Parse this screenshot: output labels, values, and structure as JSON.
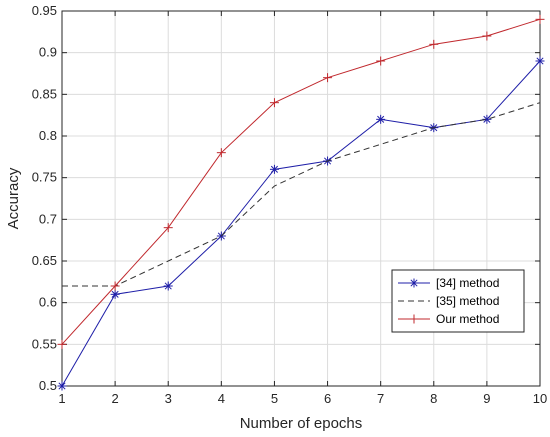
{
  "chart_data": {
    "type": "line",
    "x": [
      1,
      2,
      3,
      4,
      5,
      6,
      7,
      8,
      9,
      10
    ],
    "xlabel": "Number of epochs",
    "ylabel": "Accuracy",
    "xlim": [
      1,
      10
    ],
    "ylim": [
      0.5,
      0.95
    ],
    "xticks": [
      "1",
      "2",
      "3",
      "4",
      "5",
      "6",
      "7",
      "8",
      "9",
      "10"
    ],
    "yticks": [
      "0.5",
      "0.55",
      "0.6",
      "0.65",
      "0.7",
      "0.75",
      "0.8",
      "0.85",
      "0.9",
      "0.95"
    ],
    "grid": true,
    "legend_position": "bottom-right",
    "series": [
      {
        "name": "[34] method",
        "values": [
          0.5,
          0.61,
          0.62,
          0.68,
          0.76,
          0.77,
          0.82,
          0.81,
          0.82,
          0.89
        ],
        "color": "#1f1fa8",
        "style": "solid",
        "marker": "asterisk"
      },
      {
        "name": "[35] method",
        "values": [
          0.62,
          0.62,
          0.65,
          0.68,
          0.74,
          0.77,
          0.79,
          0.81,
          0.82,
          0.84
        ],
        "color": "#333333",
        "style": "dashed",
        "marker": "none"
      },
      {
        "name": "Our method",
        "values": [
          0.55,
          0.62,
          0.69,
          0.78,
          0.84,
          0.87,
          0.89,
          0.91,
          0.92,
          0.94
        ],
        "color": "#c0282d",
        "style": "solid",
        "marker": "plus"
      }
    ]
  }
}
